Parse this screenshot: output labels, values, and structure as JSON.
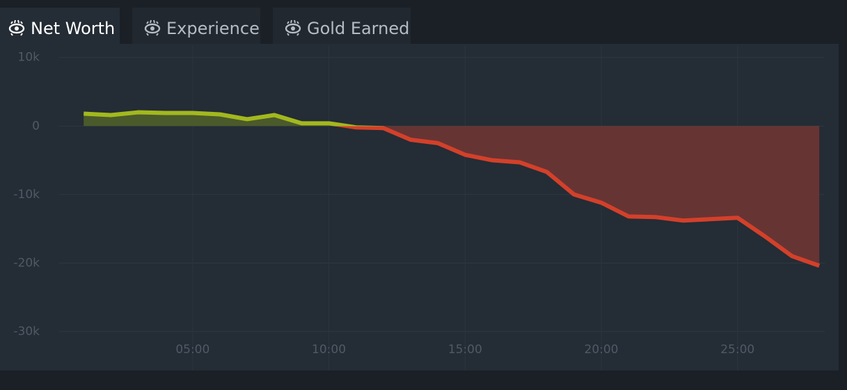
{
  "tabs": [
    "Net Worth",
    "Experience",
    "Gold Earned"
  ],
  "chart_data": {
    "type": "line",
    "x": [
      1,
      2,
      3,
      4,
      5,
      6,
      7,
      8,
      9,
      10,
      11,
      12,
      13,
      14,
      15,
      16,
      17,
      18,
      19,
      20,
      21,
      22,
      23,
      24,
      25,
      26,
      27,
      28
    ],
    "values": [
      1800,
      1600,
      2000,
      1900,
      1900,
      1700,
      1000,
      1600,
      400,
      400,
      -200,
      -300,
      -2000,
      -2500,
      -4200,
      -5000,
      -5300,
      -6700,
      -10000,
      -11200,
      -13200,
      -13300,
      -13800,
      -13600,
      -13400,
      -16100,
      -19000,
      -20400
    ],
    "positive_color": "#a3b81e",
    "negative_color": "#d3402a",
    "positive_fill": "#4a5a2b",
    "negative_fill": "#673434",
    "xlim": [
      0.1,
      28.2
    ],
    "xticks": [
      {
        "value": 5,
        "label": "05:00"
      },
      {
        "value": 10,
        "label": "10:00"
      },
      {
        "value": 15,
        "label": "15:00"
      },
      {
        "value": 20,
        "label": "20:00"
      },
      {
        "value": 25,
        "label": "25:00"
      }
    ],
    "ylim": [
      -35700,
      11800
    ],
    "yticks": [
      {
        "value": 10000,
        "label": "10k"
      },
      {
        "value": 0,
        "label": "0"
      },
      {
        "value": -10000,
        "label": "-10k"
      },
      {
        "value": -20000,
        "label": "-20k"
      },
      {
        "value": -30000,
        "label": "-30k"
      }
    ],
    "grid": true
  }
}
